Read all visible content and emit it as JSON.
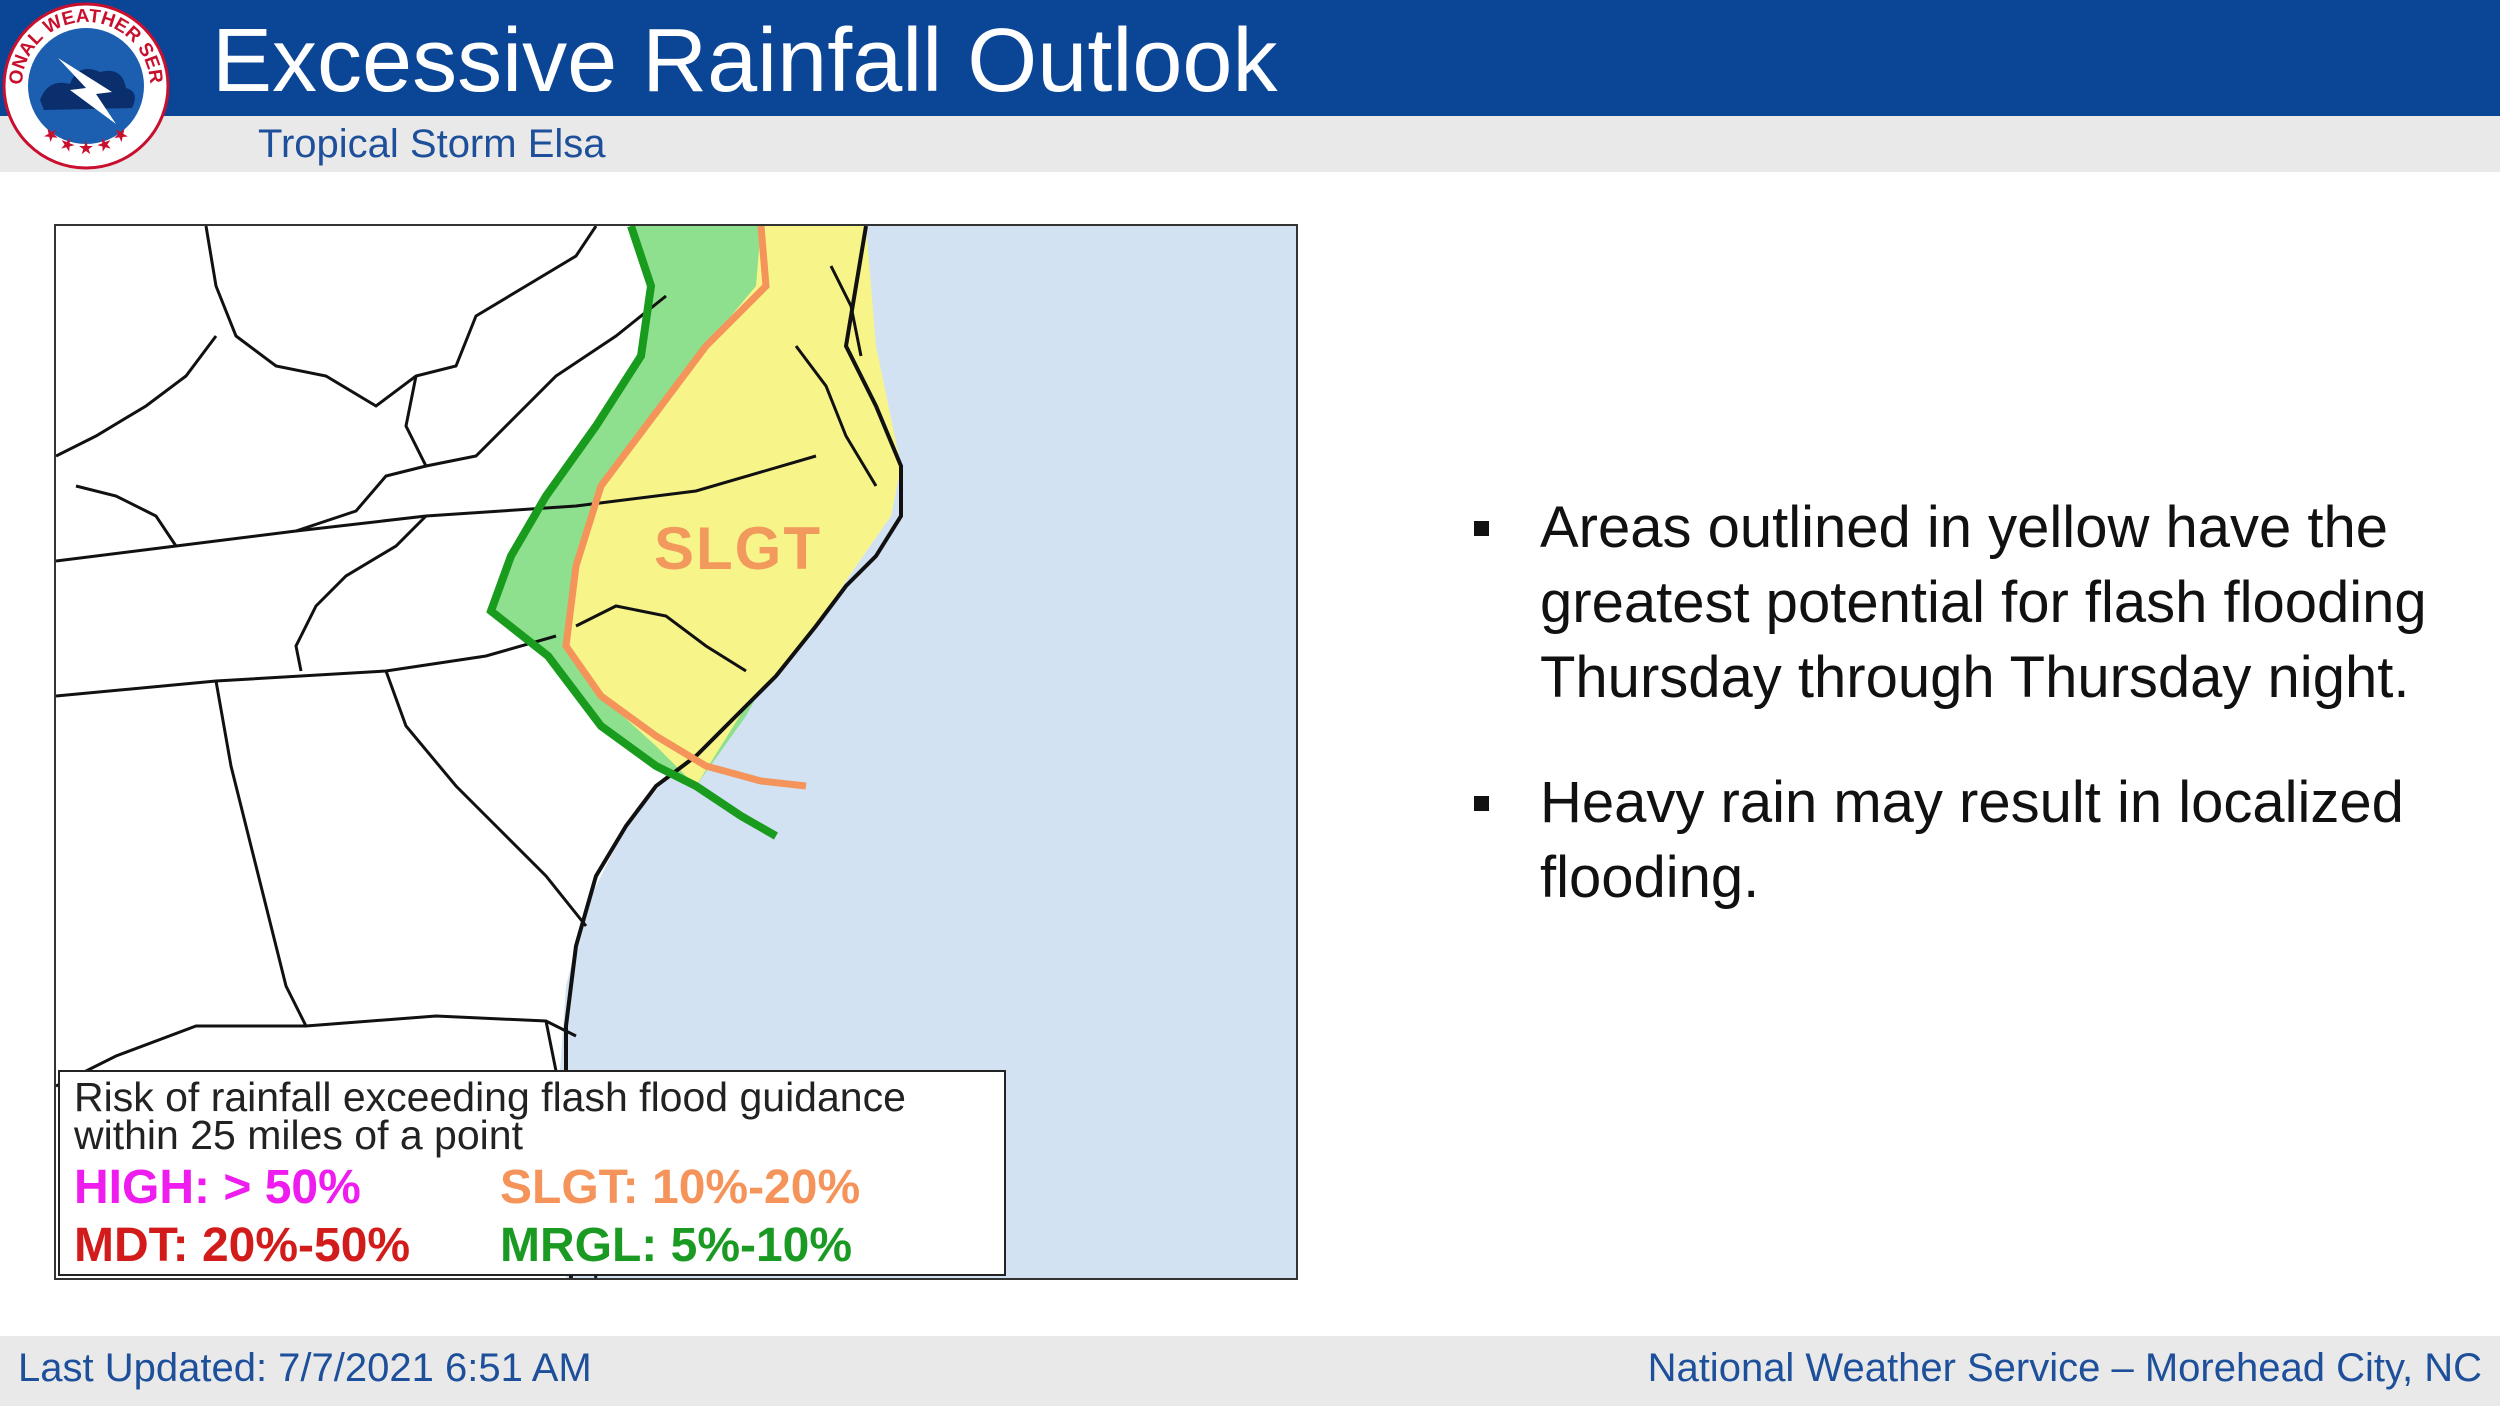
{
  "header": {
    "title": "Excessive Rainfall Outlook",
    "subtitle": "Tropical Storm Elsa"
  },
  "logo": {
    "icon": "nws-logo-icon",
    "text": "NATIONAL WEATHER SERVICE"
  },
  "map": {
    "risk_area_label": "SLGT",
    "colors": {
      "ocean": "#d2e2f2",
      "slgt_fill": "#f7f48a",
      "slgt_line": "#f4945a",
      "mrgl_fill": "#8ee08e",
      "mrgl_line": "#199b1e",
      "borders": "#111111"
    }
  },
  "legend": {
    "description": "Risk of rainfall exceeding flash flood guidance within 25 miles of a point",
    "items": [
      {
        "label": "HIGH: > 50%",
        "color": "#ee1cee"
      },
      {
        "label": "SLGT: 10%-20%",
        "color": "#f4945a"
      },
      {
        "label": "MDT: 20%-50%",
        "color": "#d21c1c"
      },
      {
        "label": "MRGL: 5%-10%",
        "color": "#1a9a22"
      }
    ]
  },
  "bullets": [
    "Areas outlined in yellow have the greatest potential for flash flooding Thursday through Thursday night.",
    "Heavy rain may result in localized flooding."
  ],
  "footer": {
    "last_updated": "Last Updated:  7/7/2021 6:51 AM",
    "office": "National Weather Service – Morehead City, NC"
  }
}
